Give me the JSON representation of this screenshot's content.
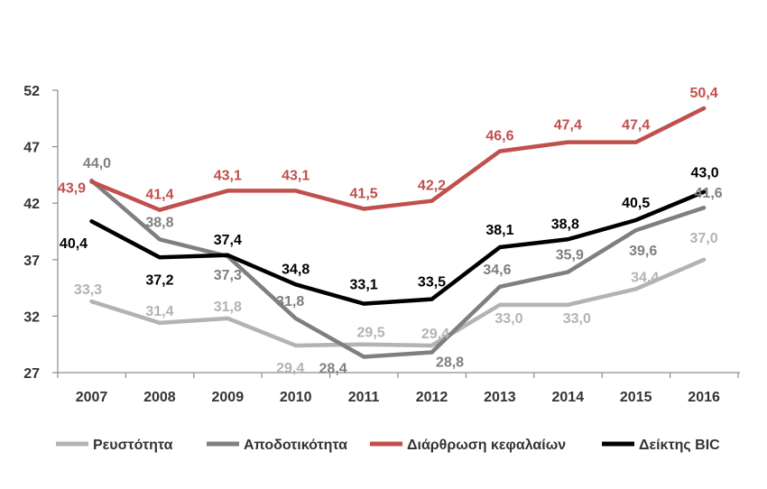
{
  "chart_data": {
    "type": "line",
    "categories": [
      "2007",
      "2008",
      "2009",
      "2010",
      "2011",
      "2012",
      "2013",
      "2014",
      "2015",
      "2016"
    ],
    "ylim": [
      27,
      52
    ],
    "yticks": [
      "27",
      "32",
      "37",
      "42",
      "47",
      "52"
    ],
    "grid": false,
    "legend_position": "bottom",
    "series": [
      {
        "name": "Ρευστότητα",
        "color": "#b3b3b3",
        "values": [
          33.3,
          31.4,
          31.8,
          29.4,
          29.5,
          29.4,
          33.0,
          33.0,
          34.4,
          37.0
        ],
        "labels": [
          "33,3",
          "31,4",
          "31,8",
          "29,4",
          "29,5",
          "29,4",
          "33,0",
          "33,0",
          "34,4",
          "37,0"
        ]
      },
      {
        "name": "Αποδοτικότητα",
        "color": "#7f7f7f",
        "values": [
          44.0,
          38.8,
          37.3,
          31.8,
          28.4,
          28.8,
          34.6,
          35.9,
          39.6,
          41.6
        ],
        "labels": [
          "44,0",
          "38,8",
          "37,3",
          "31,8",
          "28,4",
          "28,8",
          "34,6",
          "35,9",
          "39,6",
          "41,6"
        ]
      },
      {
        "name": "Διάρθρωση κεφαλαίων",
        "color": "#c0504d",
        "values": [
          43.9,
          41.4,
          43.1,
          43.1,
          41.5,
          42.2,
          46.6,
          47.4,
          47.4,
          50.4
        ],
        "labels": [
          "43,9",
          "41,4",
          "43,1",
          "43,1",
          "41,5",
          "42,2",
          "46,6",
          "47,4",
          "47,4",
          "50,4"
        ]
      },
      {
        "name": "Δείκτης BIC",
        "color": "#000000",
        "values": [
          40.4,
          37.2,
          37.4,
          34.8,
          33.1,
          33.5,
          38.1,
          38.8,
          40.5,
          43.0
        ],
        "labels": [
          "40,4",
          "37,2",
          "37,4",
          "34,8",
          "33,1",
          "33,5",
          "38,1",
          "38,8",
          "40,5",
          "43,0"
        ]
      }
    ]
  }
}
